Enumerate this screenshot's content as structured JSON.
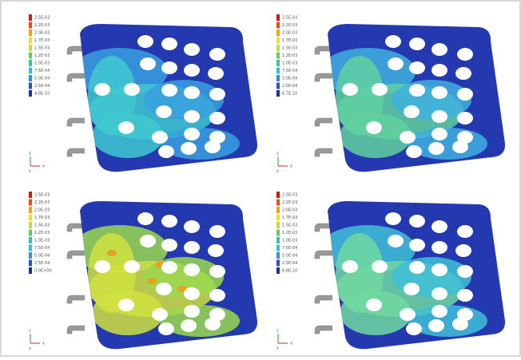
{
  "panels": [
    {
      "legend": [
        "2.5E-03",
        "2.2E-03",
        "2.0E-03",
        "1.7E-03",
        "1.5E-03",
        "1.2E-03",
        "1.0E-03",
        "7.5E-04",
        "5.0E-04",
        "2.5E-04",
        "4.0E-10"
      ]
    },
    {
      "legend": [
        "2.5E-03",
        "2.2E-03",
        "2.0E-03",
        "1.7E-03",
        "1.5E-03",
        "1.2E-03",
        "1.0E-03",
        "7.5E-04",
        "5.0E-04",
        "2.5E-04",
        "6.7E-10"
      ]
    },
    {
      "legend": [
        "2.5E-03",
        "2.2E-03",
        "2.0E-03",
        "1.7E-03",
        "1.5E-03",
        "1.2E-03",
        "1.0E-03",
        "7.5E-04",
        "5.0E-04",
        "2.5E-04",
        "0.0E+00"
      ]
    },
    {
      "legend": [
        "2.5E-03",
        "2.2E-03",
        "2.0E-03",
        "1.7E-03",
        "1.5E-03",
        "1.2E-03",
        "1.0E-03",
        "7.5E-04",
        "5.0E-04",
        "2.5E-04",
        "6.8E-10"
      ]
    }
  ],
  "axis_labels": {
    "z": "z",
    "x": "x",
    "y": "y"
  }
}
